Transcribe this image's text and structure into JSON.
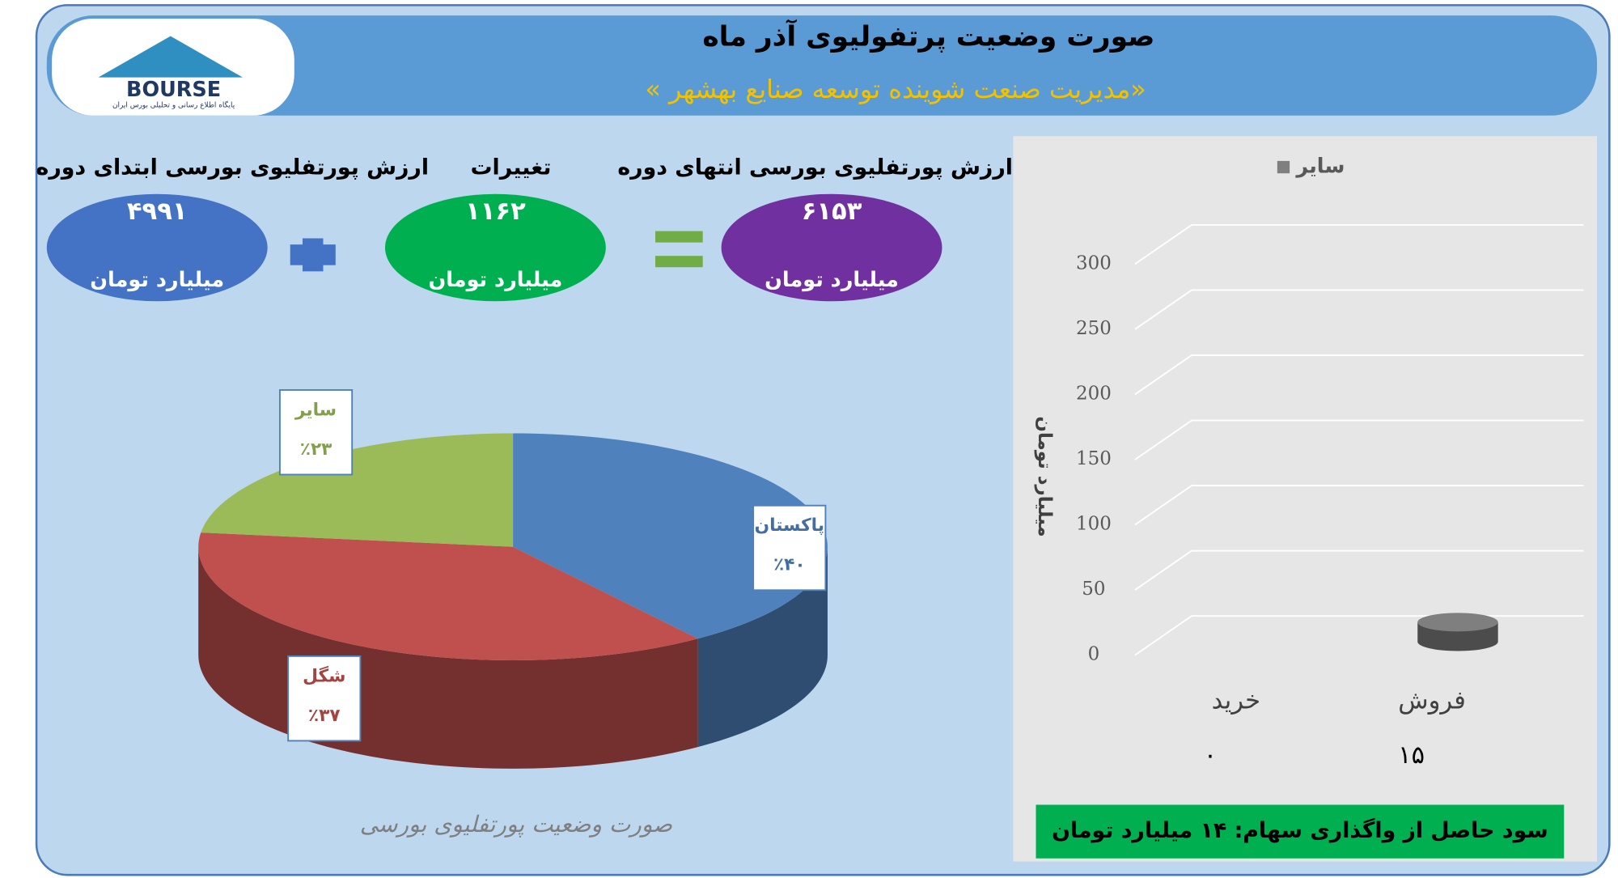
{
  "header": {
    "title": "صورت وضعیت پرتفولیوی آذر ماه",
    "subtitle": "«مدیریت صنعت شوینده توسعه صنایع بهشهر »",
    "logo": "BOURSE",
    "logo_caption": "پایگاه اطلاع رسانی و تحلیلی بورس ایران"
  },
  "summary": {
    "items": [
      {
        "label": "ارزش پورتفلیوی بورسی ابتدای دوره",
        "value": "۴۹۹۱",
        "unit": "میلیارد تومان",
        "color": "#4472c4"
      },
      {
        "label": "تغییرات",
        "value": "۱۱۶۲",
        "unit": "میلیارد تومان",
        "color": "#00b050"
      },
      {
        "label": "ارزش پورتفلیوی بورسی انتهای دوره",
        "value": "۶۱۵۳",
        "unit": "میلیارد تومان",
        "color": "#7030a0"
      }
    ]
  },
  "chart_data": [
    {
      "type": "pie",
      "title": "صورت وضعیت پورتفلیوی بورسی",
      "categories": [
        "پاکستان",
        "شگل",
        "سایر"
      ],
      "values": [
        40,
        37,
        23
      ],
      "value_labels": [
        "٪۴۰",
        "٪۳۷",
        "٪۲۳"
      ],
      "colors": [
        "#4f81bd",
        "#c0504d",
        "#9bbb59"
      ]
    },
    {
      "type": "bar",
      "categories": [
        "خرید",
        "فروش"
      ],
      "series": [
        {
          "name": "سایر",
          "color": "#7f7f7f",
          "values": [
            0,
            15
          ],
          "value_labels": [
            "۰",
            "۱۵"
          ]
        }
      ],
      "ylabel": "میلیارد تومان",
      "ylim": [
        0,
        300
      ],
      "yticks": [
        0,
        50,
        100,
        150,
        200,
        250,
        300
      ],
      "grid": true
    }
  ],
  "footer": "سود حاصل از واگذاری سهام: ۱۴ میلیارد تومان"
}
